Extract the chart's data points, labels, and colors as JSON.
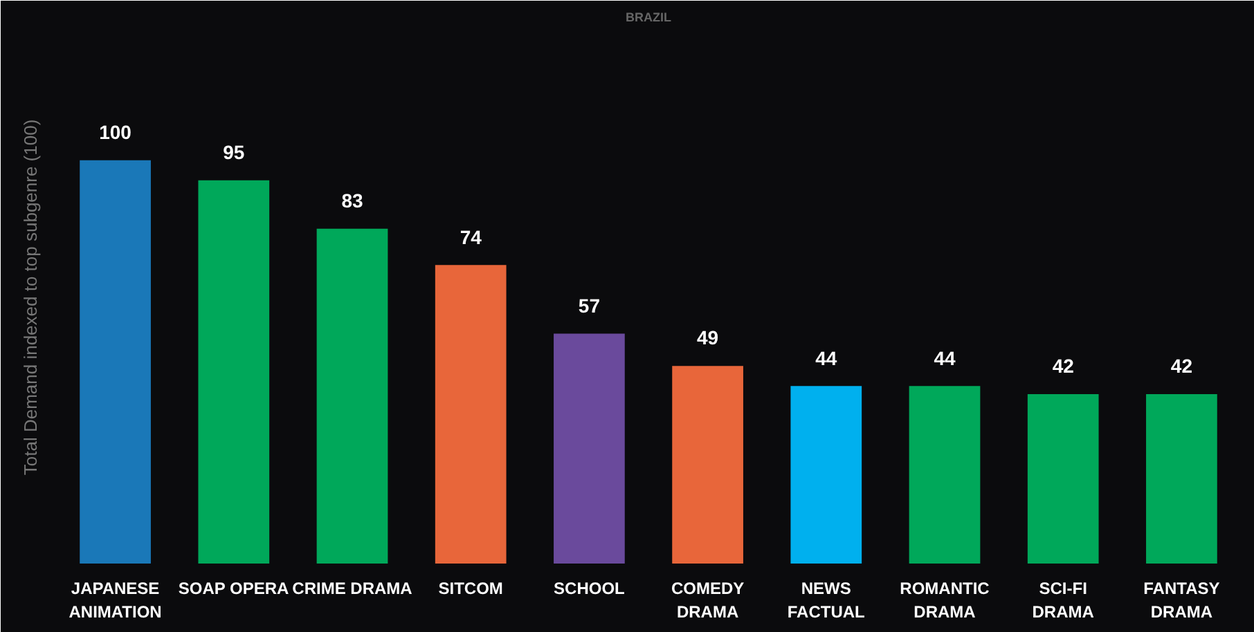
{
  "chart_data": {
    "type": "bar",
    "title": "BRAZIL",
    "ylabel": "Total Demand indexed to top subgenre (100)",
    "categories": [
      "JAPANESE ANIMATION",
      "SOAP OPERA",
      "CRIME DRAMA",
      "SITCOM",
      "SCHOOL",
      "COMEDY DRAMA",
      "NEWS FACTUAL",
      "ROMANTIC DRAMA",
      "SCI-FI DRAMA",
      "FANTASY DRAMA"
    ],
    "values": [
      100,
      95,
      83,
      74,
      57,
      49,
      44,
      44,
      42,
      42
    ],
    "colors": [
      "#1a78b8",
      "#00a85a",
      "#00a85a",
      "#e8663a",
      "#6a4a9c",
      "#e8663a",
      "#00b0ee",
      "#00a85a",
      "#00a85a",
      "#00a85a"
    ],
    "data_labels": true,
    "grid": false,
    "tick_labels": "x"
  }
}
